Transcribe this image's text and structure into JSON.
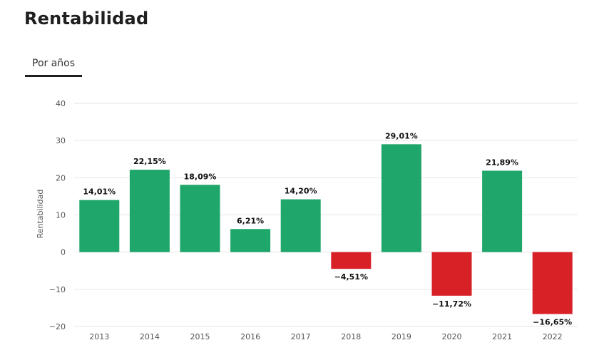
{
  "header": {
    "title": "Rentabilidad"
  },
  "tabs": [
    {
      "label": "Por años",
      "active": true
    }
  ],
  "colors": {
    "positive": "#1fa66a",
    "negative": "#d82027",
    "grid": "#e6e6e6"
  },
  "chart_data": {
    "type": "bar",
    "title": "",
    "xlabel": "",
    "ylabel": "Rentabilidad",
    "ylim": [
      -20,
      40
    ],
    "yticks": [
      40,
      30,
      20,
      10,
      0,
      -10,
      -20
    ],
    "ytick_labels": [
      "40",
      "30",
      "20",
      "10",
      "0",
      "−10",
      "−20"
    ],
    "categories": [
      "2013",
      "2014",
      "2015",
      "2016",
      "2017",
      "2018",
      "2019",
      "2020",
      "2021",
      "2022"
    ],
    "values": [
      14.01,
      22.15,
      18.09,
      6.21,
      14.2,
      -4.51,
      29.01,
      -11.72,
      21.89,
      -16.65
    ],
    "labels": [
      "14,01%",
      "22,15%",
      "18,09%",
      "6,21%",
      "14,20%",
      "−4,51%",
      "29,01%",
      "−11,72%",
      "21,89%",
      "−16,65%"
    ]
  }
}
